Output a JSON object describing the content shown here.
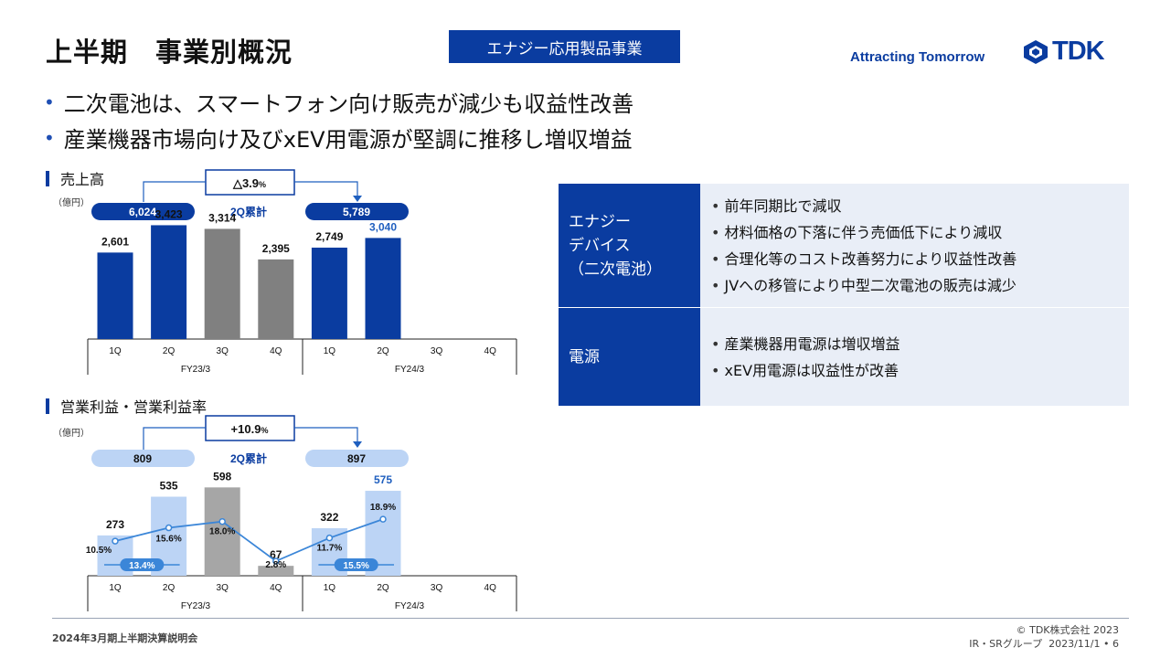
{
  "header": {
    "title": "上半期　事業別概況",
    "segment": "エナジー応用製品事業",
    "tagline": "Attracting Tomorrow",
    "logo_text": "TDK",
    "brand_color": "#0a3ca0"
  },
  "bullets": [
    "二次電池は、スマートフォン向け販売が減少も収益性改善",
    "産業機器市場向け及びxEV用電源が堅調に推移し増収増益"
  ],
  "sales": {
    "section_title": "売上高",
    "unit": "（億円）",
    "change": "△3.9",
    "change_suffix": "%",
    "h1_label": "2Q累計",
    "h1_prev": "6,024",
    "h1_curr": "5,789"
  },
  "profit": {
    "section_title": "営業利益・営業利益率",
    "unit": "（億円）",
    "change": "+10.9",
    "change_suffix": "%",
    "h1_label": "2Q累計",
    "h1_prev": "809",
    "h1_curr": "897"
  },
  "chart_data": [
    {
      "type": "bar",
      "title": "売上高",
      "categories": [
        "1Q",
        "2Q",
        "3Q",
        "4Q",
        "1Q",
        "2Q",
        "3Q",
        "4Q"
      ],
      "groups": [
        "FY23/3",
        "FY24/3"
      ],
      "values": [
        2601,
        3423,
        3314,
        2395,
        2749,
        3040,
        null,
        null
      ],
      "labels": [
        "2,601",
        "3,423",
        "3,314",
        "2,395",
        "2,749",
        "3,040",
        "",
        ""
      ],
      "ylim": [
        0,
        3600
      ],
      "colors": {
        "h1": "#0a3ca0",
        "h2": "#808080",
        "current_label": "#1f5fbf"
      }
    },
    {
      "type": "bar",
      "title": "営業利益・営業利益率",
      "categories": [
        "1Q",
        "2Q",
        "3Q",
        "4Q",
        "1Q",
        "2Q",
        "3Q",
        "4Q"
      ],
      "groups": [
        "FY23/3",
        "FY24/3"
      ],
      "values": [
        273,
        535,
        598,
        67,
        322,
        575,
        null,
        null
      ],
      "labels": [
        "273",
        "535",
        "598",
        "67",
        "322",
        "575",
        "",
        ""
      ],
      "margin_series": {
        "values": [
          10.5,
          15.6,
          18.0,
          2.8,
          11.7,
          18.9,
          null,
          null
        ],
        "labels": [
          "10.5%",
          "15.6%",
          "18.0%",
          "2.8%",
          "11.7%",
          "18.9%",
          "",
          ""
        ]
      },
      "half_year_margin": [
        {
          "label": "13.4%",
          "value": 13.4
        },
        {
          "label": "15.5%",
          "value": 15.5
        }
      ],
      "ylim": [
        0,
        650
      ],
      "colors": {
        "h1": "#bcd4f5",
        "h2": "#a6a6a6",
        "line": "#3b86d8",
        "current_label": "#1f5fbf"
      }
    }
  ],
  "summary_table": [
    {
      "segment": [
        "エナジー",
        "デバイス",
        "（二次電池）"
      ],
      "points": [
        "前年同期比で減収",
        "材料価格の下落に伴う売価低下により減収",
        "合理化等のコスト改善努力により収益性改善",
        "JVへの移管により中型二次電池の販売は減少"
      ]
    },
    {
      "segment": [
        "電源"
      ],
      "points": [
        "産業機器用電源は増収増益",
        "xEV用電源は収益性が改善"
      ]
    }
  ],
  "footer": {
    "left": "2024年3月期上半期決算説明会",
    "copyright": "© TDK株式会社 2023",
    "dept": "IR・SRグループ",
    "date": "2023/11/1",
    "page": "6"
  }
}
